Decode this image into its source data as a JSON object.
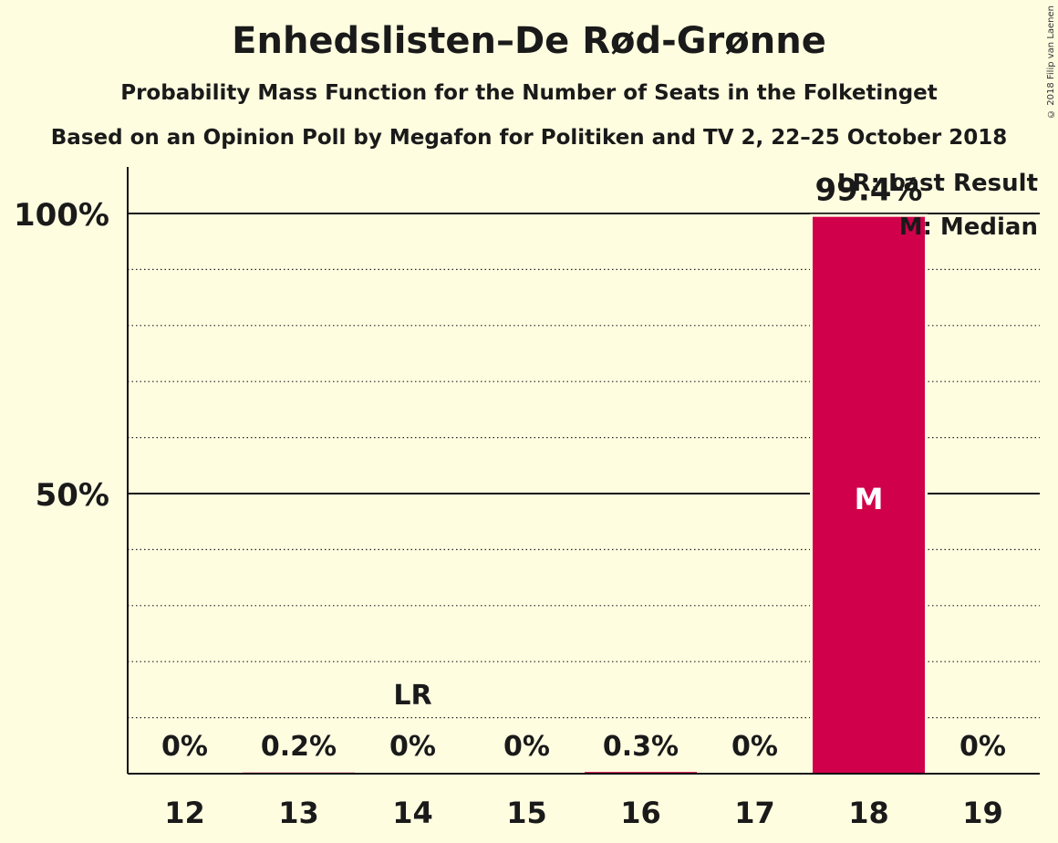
{
  "copyright": "© 2018 Filip van Laenen",
  "chart_data": {
    "type": "bar",
    "title": "Enhedslisten–De Rød-Grønne",
    "subtitle": "Probability Mass Function for the Number of Seats in the Folketinget",
    "subtitle2": "Based on an Opinion Poll by Megafon for Politiken and TV 2, 22–25 October 2018",
    "categories": [
      "12",
      "13",
      "14",
      "15",
      "16",
      "17",
      "18",
      "19"
    ],
    "values": [
      0,
      0.2,
      0,
      0,
      0.3,
      0,
      99.4,
      0
    ],
    "value_labels": [
      "0%",
      "0.2%",
      "0%",
      "0%",
      "0.3%",
      "0%",
      "99.4%",
      "0%"
    ],
    "ylim": [
      0,
      110
    ],
    "yticks": [
      {
        "value": 50,
        "label": "50%"
      },
      {
        "value": 100,
        "label": "100%"
      }
    ],
    "minor_grid": [
      10,
      20,
      30,
      40,
      60,
      70,
      80,
      90
    ],
    "last_result": {
      "category": "14",
      "label": "LR"
    },
    "median": {
      "category": "18",
      "label": "M"
    },
    "legend": {
      "position": "top-right",
      "items": [
        "LR: Last Result",
        "M: Median"
      ]
    },
    "bar_color": "#d0004a"
  }
}
